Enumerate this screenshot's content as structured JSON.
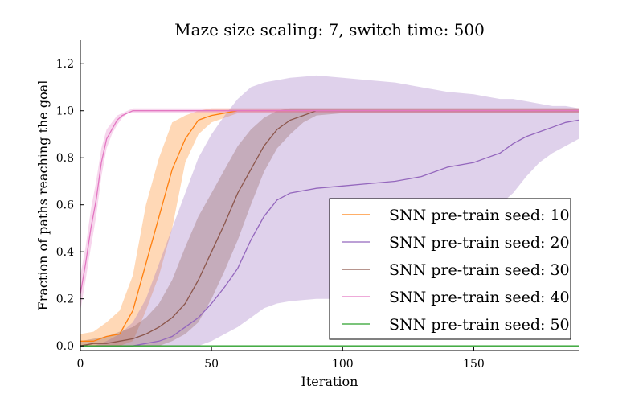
{
  "chart_data": {
    "type": "line",
    "title": "Maze size scaling: 7, switch time: 500",
    "xlabel": "Iteration",
    "ylabel": "Fraction of paths reaching the goal",
    "xlim": [
      0,
      190
    ],
    "ylim": [
      -0.02,
      1.3
    ],
    "xticks": [
      0,
      50,
      100,
      150
    ],
    "xtick_labels": [
      "0",
      "50",
      "100",
      "150"
    ],
    "yticks": [
      0.0,
      0.2,
      0.4,
      0.6,
      0.8,
      1.0,
      1.2
    ],
    "ytick_labels": [
      "0.0",
      "0.2",
      "0.4",
      "0.6",
      "0.8",
      "1.0",
      "1.2"
    ],
    "grid": false,
    "legend_position": "lower-right",
    "series": [
      {
        "name": "SNN pre-train seed: 10",
        "color": "#ff7f0e",
        "x": [
          0,
          5,
          10,
          15,
          20,
          25,
          30,
          35,
          40,
          45,
          50,
          55,
          60,
          65,
          70,
          80,
          100,
          120,
          140,
          160,
          180,
          190
        ],
        "y": [
          0.02,
          0.02,
          0.04,
          0.05,
          0.15,
          0.35,
          0.55,
          0.75,
          0.88,
          0.96,
          0.98,
          0.99,
          1.0,
          1.0,
          1.0,
          1.0,
          1.0,
          1.0,
          1.0,
          1.0,
          1.0,
          1.0
        ],
        "lower": [
          0.0,
          0.0,
          0.0,
          0.0,
          0.02,
          0.15,
          0.3,
          0.5,
          0.78,
          0.9,
          0.95,
          0.97,
          0.99,
          0.99,
          0.99,
          0.99,
          0.99,
          0.99,
          0.99,
          0.99,
          0.99,
          0.99
        ],
        "upper": [
          0.05,
          0.06,
          0.1,
          0.15,
          0.3,
          0.6,
          0.8,
          0.95,
          0.98,
          1.0,
          1.01,
          1.01,
          1.01,
          1.01,
          1.01,
          1.01,
          1.01,
          1.01,
          1.01,
          1.01,
          1.01,
          1.01
        ]
      },
      {
        "name": "SNN pre-train seed: 20",
        "color": "#9467bd",
        "x": [
          0,
          5,
          10,
          15,
          20,
          25,
          30,
          35,
          40,
          45,
          50,
          55,
          60,
          65,
          70,
          75,
          80,
          90,
          100,
          110,
          120,
          130,
          140,
          150,
          155,
          160,
          165,
          170,
          175,
          180,
          185,
          190
        ],
        "y": [
          0.0,
          0.0,
          0.0,
          0.0,
          0.0,
          0.01,
          0.02,
          0.04,
          0.08,
          0.12,
          0.18,
          0.25,
          0.33,
          0.45,
          0.55,
          0.62,
          0.65,
          0.67,
          0.68,
          0.69,
          0.7,
          0.72,
          0.76,
          0.78,
          0.8,
          0.82,
          0.86,
          0.89,
          0.91,
          0.93,
          0.95,
          0.96
        ],
        "lower": [
          0.0,
          0.0,
          0.0,
          0.0,
          0.0,
          0.0,
          0.0,
          0.0,
          0.0,
          0.0,
          0.02,
          0.05,
          0.08,
          0.12,
          0.16,
          0.18,
          0.19,
          0.2,
          0.2,
          0.21,
          0.24,
          0.3,
          0.4,
          0.5,
          0.55,
          0.6,
          0.65,
          0.72,
          0.78,
          0.82,
          0.85,
          0.88
        ],
        "upper": [
          0.0,
          0.0,
          0.02,
          0.05,
          0.1,
          0.2,
          0.35,
          0.5,
          0.65,
          0.8,
          0.9,
          0.98,
          1.05,
          1.1,
          1.12,
          1.13,
          1.14,
          1.15,
          1.14,
          1.13,
          1.12,
          1.1,
          1.08,
          1.07,
          1.06,
          1.05,
          1.05,
          1.04,
          1.03,
          1.02,
          1.02,
          1.01
        ]
      },
      {
        "name": "SNN pre-train seed: 30",
        "color": "#8c564b",
        "x": [
          0,
          5,
          10,
          15,
          20,
          25,
          30,
          35,
          40,
          45,
          50,
          55,
          60,
          65,
          70,
          75,
          80,
          85,
          90,
          100,
          120,
          140,
          160,
          180,
          190
        ],
        "y": [
          0.0,
          0.01,
          0.01,
          0.02,
          0.03,
          0.05,
          0.08,
          0.12,
          0.18,
          0.28,
          0.4,
          0.52,
          0.65,
          0.75,
          0.85,
          0.92,
          0.96,
          0.98,
          1.0,
          1.0,
          1.0,
          1.0,
          1.0,
          1.0,
          1.0
        ],
        "lower": [
          0.0,
          0.0,
          0.0,
          0.0,
          0.0,
          0.0,
          0.0,
          0.02,
          0.05,
          0.1,
          0.2,
          0.32,
          0.45,
          0.6,
          0.74,
          0.84,
          0.9,
          0.95,
          0.98,
          0.99,
          0.99,
          0.99,
          0.99,
          0.99,
          0.99
        ],
        "upper": [
          0.02,
          0.03,
          0.04,
          0.06,
          0.08,
          0.12,
          0.18,
          0.28,
          0.42,
          0.55,
          0.65,
          0.75,
          0.85,
          0.92,
          0.97,
          1.0,
          1.01,
          1.01,
          1.01,
          1.01,
          1.01,
          1.01,
          1.01,
          1.01,
          1.01
        ]
      },
      {
        "name": "SNN pre-train seed: 40",
        "color": "#e377c2",
        "x": [
          0,
          2,
          4,
          6,
          8,
          10,
          12,
          14,
          16,
          18,
          20,
          25,
          30,
          50,
          100,
          150,
          190
        ],
        "y": [
          0.22,
          0.35,
          0.5,
          0.62,
          0.78,
          0.88,
          0.92,
          0.96,
          0.98,
          0.99,
          1.0,
          1.0,
          1.0,
          1.0,
          1.0,
          1.0,
          1.0
        ],
        "lower": [
          0.15,
          0.28,
          0.42,
          0.55,
          0.72,
          0.84,
          0.9,
          0.94,
          0.97,
          0.99,
          0.99,
          0.99,
          0.99,
          0.99,
          0.99,
          0.99,
          0.99
        ],
        "upper": [
          0.3,
          0.42,
          0.58,
          0.7,
          0.84,
          0.92,
          0.95,
          0.98,
          0.99,
          1.0,
          1.01,
          1.01,
          1.01,
          1.01,
          1.01,
          1.01,
          1.01
        ]
      },
      {
        "name": "SNN pre-train seed: 50",
        "color": "#2ca02c",
        "x": [
          0,
          190
        ],
        "y": [
          0.0,
          0.0
        ],
        "lower": [
          0.0,
          0.0
        ],
        "upper": [
          0.0,
          0.0
        ]
      }
    ]
  }
}
